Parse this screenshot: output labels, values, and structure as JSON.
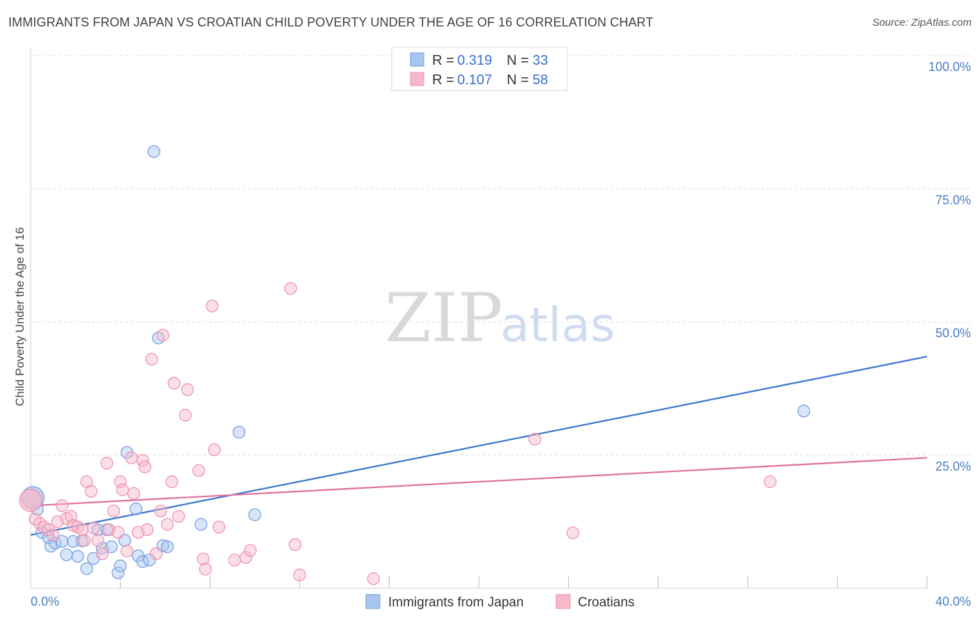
{
  "header": {
    "title": "IMMIGRANTS FROM JAPAN VS CROATIAN CHILD POVERTY UNDER THE AGE OF 16 CORRELATION CHART",
    "source": "Source: ZipAtlas.com"
  },
  "watermark": {
    "zip": "ZIP",
    "atlas": "atlas"
  },
  "colors": {
    "blue_fill": "#a9c6ef",
    "blue_stroke": "#6f9be0",
    "blue_line": "#3a75d0",
    "pink_fill": "#f7b8c9",
    "pink_stroke": "#ee8fab",
    "pink_line": "#e0709a",
    "grid": "#dddddd",
    "tick_text": "#4a7ec4"
  },
  "legend_top": [
    {
      "r_label": "R = ",
      "r_value": "0.319",
      "n_label": "N = ",
      "n_value": "33"
    },
    {
      "r_label": "R = ",
      "r_value": "0.107",
      "n_label": "N = ",
      "n_value": "58"
    }
  ],
  "chart_data": {
    "type": "scatter",
    "title": "IMMIGRANTS FROM JAPAN VS CROATIAN CHILD POVERTY UNDER THE AGE OF 16 CORRELATION CHART",
    "xlabel": "",
    "ylabel": "Child Poverty Under the Age of 16",
    "xlim": [
      0,
      40
    ],
    "ylim": [
      0,
      100
    ],
    "x_tick_labels": [
      {
        "value": 0,
        "label": "0.0%"
      },
      {
        "value": 40,
        "label": "40.0%"
      }
    ],
    "y_tick_labels": [
      {
        "value": 25,
        "label": "25.0%"
      },
      {
        "value": 50,
        "label": "50.0%"
      },
      {
        "value": 75,
        "label": "75.0%"
      },
      {
        "value": 100,
        "label": "100.0%"
      }
    ],
    "x_minor_ticks": [
      4,
      8,
      12,
      16,
      20,
      24,
      28,
      32,
      36,
      40
    ],
    "grid": true,
    "series": [
      {
        "name": "Immigrants from Japan",
        "color": "blue",
        "r": 0.319,
        "n": 33,
        "trend": {
          "x": [
            0,
            40
          ],
          "y": [
            10.0,
            43.5
          ]
        },
        "points": [
          [
            0.3,
            14.8
          ],
          [
            0.5,
            10.5
          ],
          [
            0.8,
            9.5
          ],
          [
            0.9,
            7.9
          ],
          [
            1.1,
            8.5
          ],
          [
            1.4,
            8.8
          ],
          [
            1.6,
            6.3
          ],
          [
            1.9,
            8.8
          ],
          [
            2.1,
            6.0
          ],
          [
            2.3,
            8.9
          ],
          [
            2.5,
            3.7
          ],
          [
            2.8,
            5.6
          ],
          [
            3.0,
            11.0
          ],
          [
            3.2,
            7.5
          ],
          [
            3.4,
            11.0
          ],
          [
            3.6,
            7.8
          ],
          [
            3.9,
            2.9
          ],
          [
            4.0,
            4.2
          ],
          [
            4.2,
            9.0
          ],
          [
            4.3,
            25.5
          ],
          [
            4.7,
            14.9
          ],
          [
            4.8,
            6.1
          ],
          [
            5.0,
            5.0
          ],
          [
            5.3,
            5.3
          ],
          [
            5.5,
            82.0
          ],
          [
            5.7,
            47.0
          ],
          [
            5.9,
            8.0
          ],
          [
            6.1,
            7.8
          ],
          [
            7.6,
            12.0
          ],
          [
            9.3,
            29.3
          ],
          [
            10.0,
            13.8
          ],
          [
            34.5,
            33.3
          ],
          [
            0.1,
            17.0
          ]
        ]
      },
      {
        "name": "Croatians",
        "color": "pink",
        "r": 0.107,
        "n": 58,
        "trend": {
          "x": [
            0,
            40
          ],
          "y": [
            15.5,
            24.5
          ]
        },
        "points": [
          [
            0.2,
            13.0
          ],
          [
            0.4,
            12.2
          ],
          [
            0.6,
            11.5
          ],
          [
            0.8,
            11.0
          ],
          [
            1.0,
            10.0
          ],
          [
            1.2,
            12.5
          ],
          [
            1.4,
            15.5
          ],
          [
            1.6,
            13.1
          ],
          [
            1.8,
            13.5
          ],
          [
            1.9,
            11.8
          ],
          [
            2.1,
            11.5
          ],
          [
            2.3,
            11.0
          ],
          [
            2.4,
            9.0
          ],
          [
            2.5,
            20.0
          ],
          [
            2.7,
            18.2
          ],
          [
            2.8,
            11.3
          ],
          [
            3.0,
            9.0
          ],
          [
            3.2,
            6.5
          ],
          [
            3.4,
            23.5
          ],
          [
            3.5,
            11.0
          ],
          [
            3.7,
            14.5
          ],
          [
            3.9,
            10.5
          ],
          [
            4.0,
            20.0
          ],
          [
            4.1,
            18.5
          ],
          [
            4.3,
            7.0
          ],
          [
            4.5,
            24.5
          ],
          [
            4.6,
            17.8
          ],
          [
            4.8,
            10.5
          ],
          [
            5.0,
            24.0
          ],
          [
            5.1,
            22.8
          ],
          [
            5.2,
            11.0
          ],
          [
            5.4,
            43.0
          ],
          [
            5.6,
            6.5
          ],
          [
            5.8,
            14.5
          ],
          [
            5.9,
            47.5
          ],
          [
            6.1,
            12.0
          ],
          [
            6.3,
            20.0
          ],
          [
            6.4,
            38.5
          ],
          [
            6.6,
            13.5
          ],
          [
            6.9,
            32.5
          ],
          [
            7.0,
            37.3
          ],
          [
            7.5,
            22.1
          ],
          [
            7.7,
            5.5
          ],
          [
            7.8,
            3.6
          ],
          [
            8.1,
            53.0
          ],
          [
            8.2,
            26.0
          ],
          [
            8.4,
            11.5
          ],
          [
            9.1,
            5.3
          ],
          [
            9.6,
            5.8
          ],
          [
            9.8,
            7.1
          ],
          [
            11.6,
            56.3
          ],
          [
            11.8,
            8.2
          ],
          [
            12.0,
            2.5
          ],
          [
            15.3,
            1.8
          ],
          [
            22.5,
            28.0
          ],
          [
            24.2,
            10.4
          ],
          [
            33.0,
            20.0
          ],
          [
            0.0,
            16.5
          ]
        ]
      }
    ],
    "legend": [
      "Immigrants from Japan",
      "Croatians"
    ]
  }
}
